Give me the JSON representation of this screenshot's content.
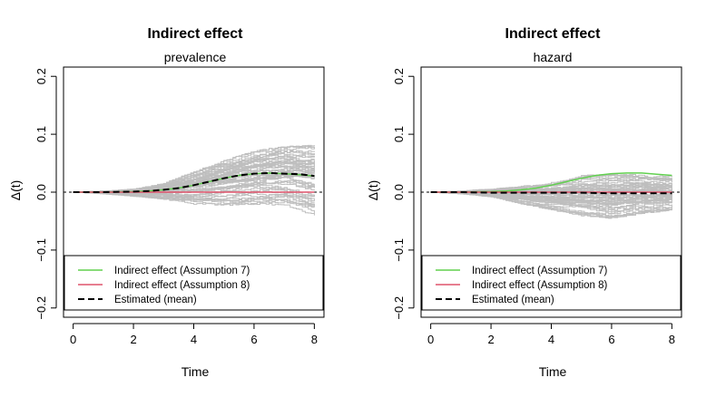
{
  "chart_data": [
    {
      "type": "line",
      "title": "Indirect effect",
      "subtitle": "prevalence",
      "xlabel": "Time",
      "ylabel": "Δ(t)",
      "xlim": [
        0,
        8
      ],
      "ylim": [
        -0.2,
        0.2
      ],
      "xticks": [
        "0",
        "2",
        "4",
        "6",
        "8"
      ],
      "yticks": [
        "−0.2",
        "−0.1",
        "0.0",
        "0.1",
        "0.2"
      ],
      "reference_line_y": 0,
      "simulation_band": {
        "name": "Simulation runs",
        "color": "#bebebe",
        "runs": 60,
        "x": [
          0,
          1,
          2,
          3,
          4,
          5,
          6,
          7,
          8
        ],
        "upper": [
          0.0,
          0.002,
          0.005,
          0.015,
          0.035,
          0.055,
          0.07,
          0.078,
          0.08
        ],
        "lower": [
          0.0,
          -0.003,
          -0.007,
          -0.012,
          -0.02,
          -0.022,
          -0.02,
          -0.022,
          -0.04
        ]
      },
      "series": [
        {
          "name": "Indirect effect (Assumption 7)",
          "color": "#61d04f",
          "style": "solid",
          "x": [
            0,
            1,
            2,
            2.5,
            3,
            3.5,
            4,
            4.5,
            5,
            5.5,
            6,
            6.5,
            7,
            7.5,
            8
          ],
          "values": [
            0.0,
            0.0,
            0.001,
            0.002,
            0.004,
            0.007,
            0.012,
            0.018,
            0.024,
            0.029,
            0.032,
            0.033,
            0.032,
            0.03,
            0.028
          ]
        },
        {
          "name": "Indirect effect (Assumption 8)",
          "color": "#df536b",
          "style": "solid",
          "x": [
            0,
            8
          ],
          "values": [
            0.0,
            0.0
          ]
        },
        {
          "name": "Estimated (mean)",
          "color": "#000000",
          "style": "dashed",
          "x": [
            0,
            1,
            2,
            2.5,
            3,
            3.5,
            4,
            4.5,
            5,
            5.5,
            6,
            6.5,
            7,
            7.5,
            8
          ],
          "values": [
            0.0,
            0.0,
            0.001,
            0.002,
            0.004,
            0.007,
            0.012,
            0.018,
            0.024,
            0.029,
            0.032,
            0.033,
            0.032,
            0.031,
            0.028
          ]
        }
      ],
      "legend": {
        "position": "bottom-left",
        "entries": [
          "Indirect effect (Assumption 7)",
          "Indirect effect (Assumption 8)",
          "Estimated (mean)"
        ]
      }
    },
    {
      "type": "line",
      "title": "Indirect effect",
      "subtitle": "hazard",
      "xlabel": "Time",
      "ylabel": "Δ(t)",
      "xlim": [
        0,
        8
      ],
      "ylim": [
        -0.2,
        0.2
      ],
      "xticks": [
        "0",
        "2",
        "4",
        "6",
        "8"
      ],
      "yticks": [
        "−0.2",
        "−0.1",
        "0.0",
        "0.1",
        "0.2"
      ],
      "reference_line_y": 0,
      "simulation_band": {
        "name": "Simulation runs",
        "color": "#bebebe",
        "runs": 60,
        "x": [
          0,
          1,
          2,
          3,
          4,
          5,
          6,
          7,
          8
        ],
        "upper": [
          0.0,
          0.002,
          0.005,
          0.01,
          0.018,
          0.028,
          0.03,
          0.03,
          0.028
        ],
        "lower": [
          0.0,
          -0.003,
          -0.008,
          -0.02,
          -0.03,
          -0.04,
          -0.045,
          -0.035,
          -0.03
        ]
      },
      "series": [
        {
          "name": "Indirect effect (Assumption 7)",
          "color": "#61d04f",
          "style": "solid",
          "x": [
            0,
            1,
            2,
            2.5,
            3,
            3.5,
            4,
            4.5,
            5,
            5.5,
            6,
            6.5,
            7,
            7.5,
            8
          ],
          "values": [
            0.0,
            0.0,
            0.001,
            0.002,
            0.004,
            0.007,
            0.012,
            0.018,
            0.024,
            0.029,
            0.032,
            0.033,
            0.033,
            0.031,
            0.029
          ]
        },
        {
          "name": "Indirect effect (Assumption 8)",
          "color": "#df536b",
          "style": "solid",
          "x": [
            0,
            8
          ],
          "values": [
            0.0,
            0.0
          ]
        },
        {
          "name": "Estimated (mean)",
          "color": "#000000",
          "style": "dashed",
          "x": [
            0,
            1,
            2,
            3,
            4,
            5,
            6,
            7,
            8
          ],
          "values": [
            0.0,
            0.0,
            -0.001,
            -0.001,
            -0.001,
            -0.001,
            -0.002,
            -0.002,
            -0.002
          ]
        }
      ],
      "legend": {
        "position": "bottom-left",
        "entries": [
          "Indirect effect (Assumption 7)",
          "Indirect effect (Assumption 8)",
          "Estimated (mean)"
        ]
      }
    }
  ]
}
